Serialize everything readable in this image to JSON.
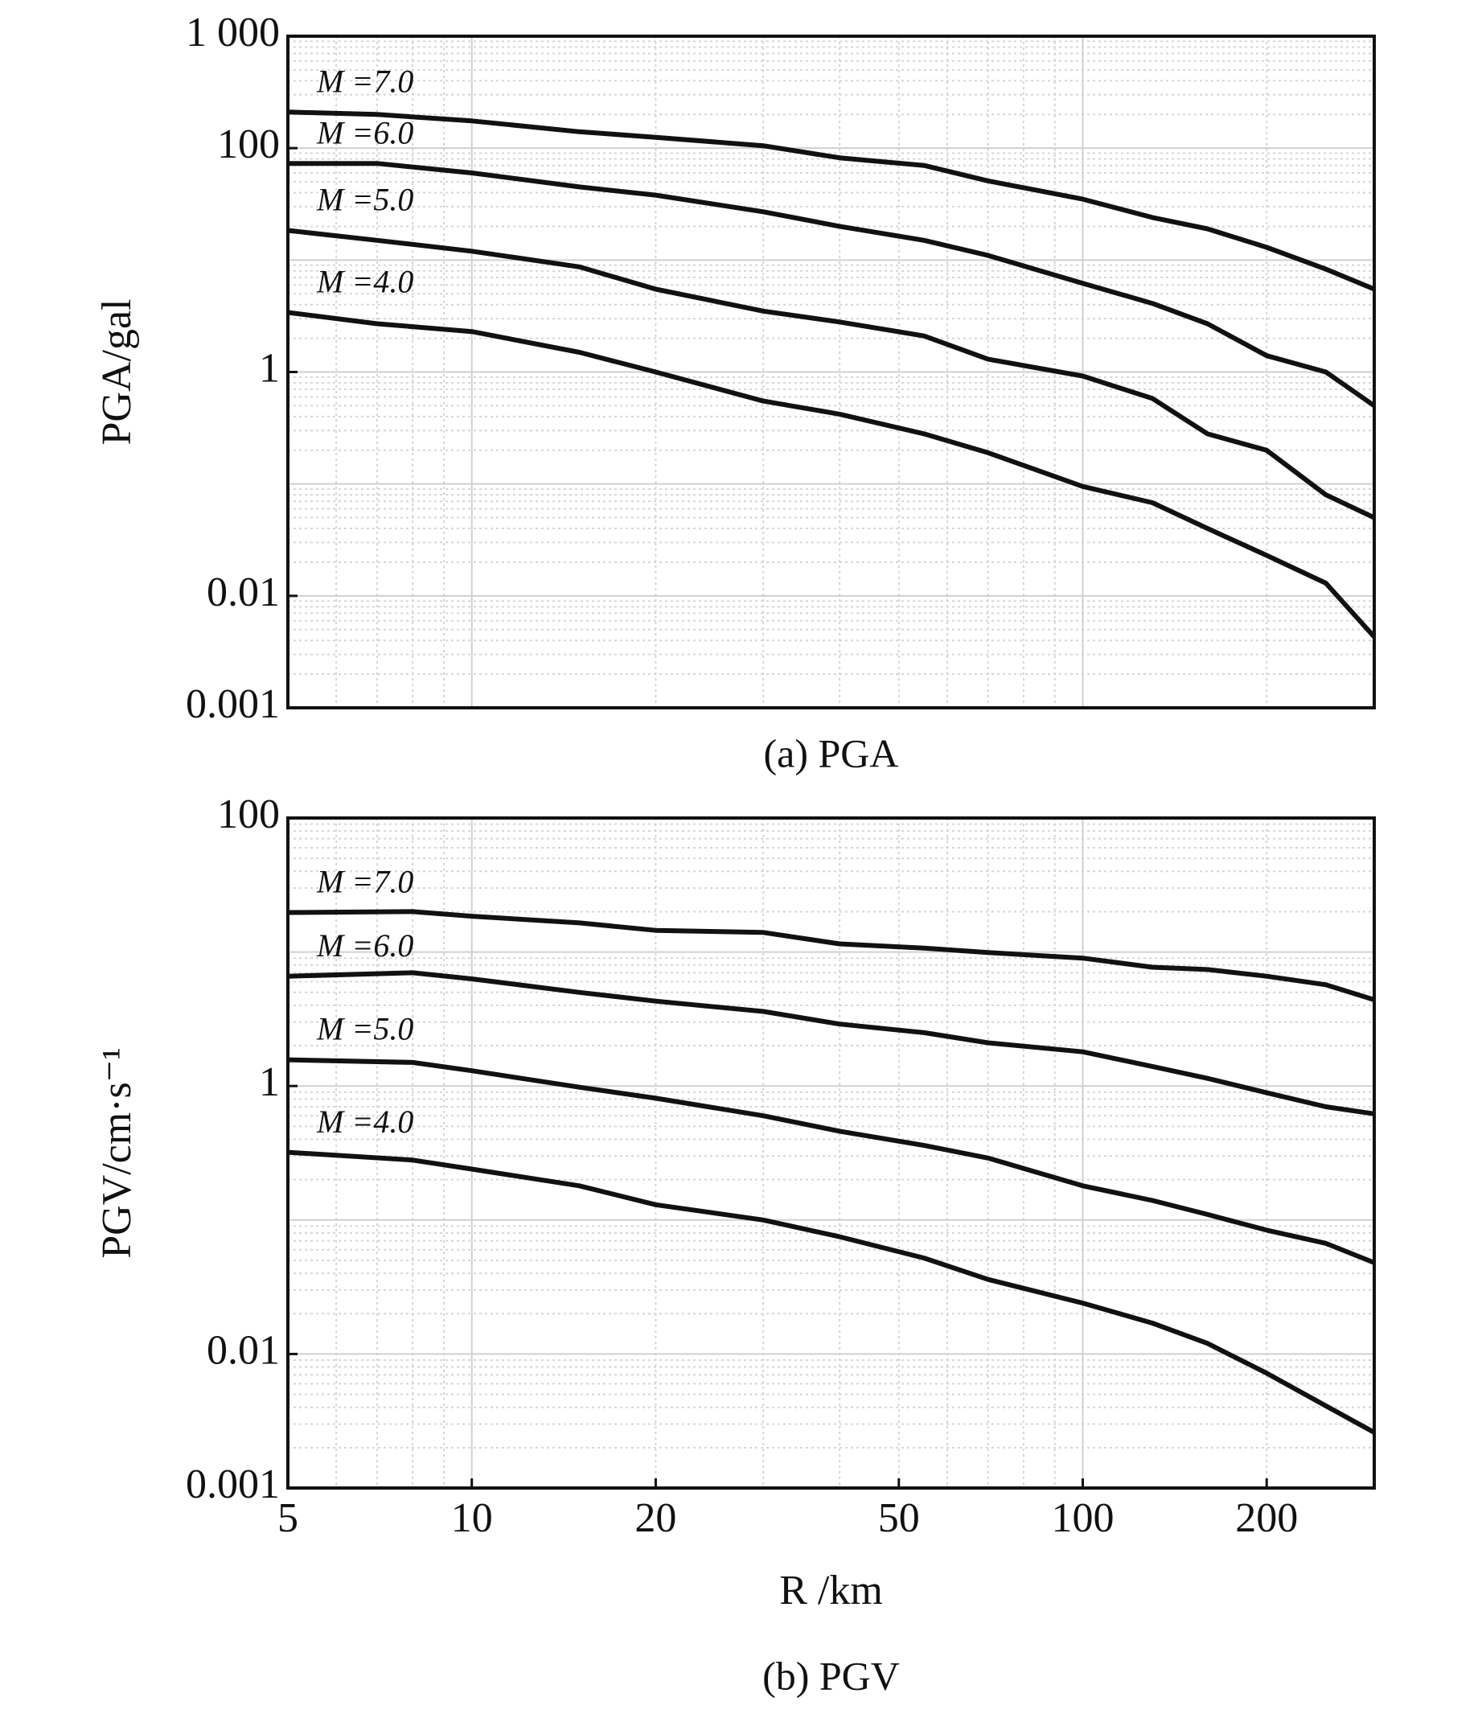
{
  "chart_data": [
    {
      "type": "line",
      "log_x": true,
      "log_y": true,
      "grid": true,
      "y_label": "PGA/gal",
      "caption": "(a) PGA",
      "x": [
        5,
        7,
        10,
        15,
        20,
        30,
        40,
        55,
        70,
        100,
        130,
        160,
        200,
        250,
        300
      ],
      "xlim": [
        5,
        300
      ],
      "ylim": [
        0.001,
        1000
      ],
      "yticks": [
        0.001,
        0.01,
        1,
        100,
        {
          "value": 1000,
          "label": "1 000"
        }
      ],
      "series": [
        {
          "name": "M =7.0",
          "color": "#111111",
          "values": [
            210,
            200,
            175,
            140,
            125,
            105,
            82,
            70,
            51,
            35,
            24,
            19,
            13,
            8.3,
            5.5
          ]
        },
        {
          "name": "M =6.0",
          "color": "#111111",
          "values": [
            73,
            73,
            60,
            45,
            38,
            27,
            20,
            15,
            11,
            6.2,
            4.1,
            2.7,
            1.4,
            1,
            0.5
          ]
        },
        {
          "name": "M =5.0",
          "color": "#111111",
          "values": [
            18.4,
            15,
            12,
            8.7,
            5.5,
            3.5,
            2.8,
            2.1,
            1.3,
            0.92,
            0.58,
            0.28,
            0.2,
            0.08,
            0.05
          ]
        },
        {
          "name": "M =4.0",
          "color": "#111111",
          "values": [
            3.4,
            2.7,
            2.3,
            1.5,
            1.0,
            0.55,
            0.42,
            0.28,
            0.19,
            0.095,
            0.068,
            0.04,
            0.023,
            0.013,
            0.0043
          ]
        }
      ]
    },
    {
      "type": "line",
      "log_x": true,
      "log_y": true,
      "grid": true,
      "y_label": "PGV/cm·s⁻¹",
      "x_label": "R /km",
      "caption": "(b) PGV",
      "x": [
        5,
        8,
        10,
        15,
        20,
        30,
        40,
        55,
        70,
        100,
        130,
        160,
        200,
        250,
        300
      ],
      "xlim": [
        5,
        300
      ],
      "ylim": [
        0.001,
        100
      ],
      "xticks": [
        5,
        10,
        20,
        50,
        100,
        200
      ],
      "yticks": [
        0.001,
        0.01,
        1,
        100
      ],
      "series": [
        {
          "name": "M =7.0",
          "color": "#111111",
          "values": [
            19.7,
            20,
            18.5,
            16.5,
            14.5,
            14,
            11.5,
            10.7,
            9.9,
            9,
            7.7,
            7.4,
            6.6,
            5.7,
            4.4
          ]
        },
        {
          "name": "M =6.0",
          "color": "#111111",
          "values": [
            6.6,
            7,
            6.3,
            5,
            4.3,
            3.6,
            2.9,
            2.5,
            2.1,
            1.8,
            1.4,
            1.14,
            0.89,
            0.7,
            0.62
          ]
        },
        {
          "name": "M =5.0",
          "color": "#111111",
          "values": [
            1.57,
            1.5,
            1.3,
            0.98,
            0.81,
            0.6,
            0.46,
            0.36,
            0.29,
            0.18,
            0.14,
            0.11,
            0.084,
            0.067,
            0.048
          ]
        },
        {
          "name": "M =4.0",
          "color": "#111111",
          "values": [
            0.32,
            0.28,
            0.24,
            0.18,
            0.13,
            0.1,
            0.075,
            0.052,
            0.036,
            0.024,
            0.017,
            0.012,
            0.0072,
            0.0041,
            0.0026
          ]
        }
      ]
    }
  ]
}
